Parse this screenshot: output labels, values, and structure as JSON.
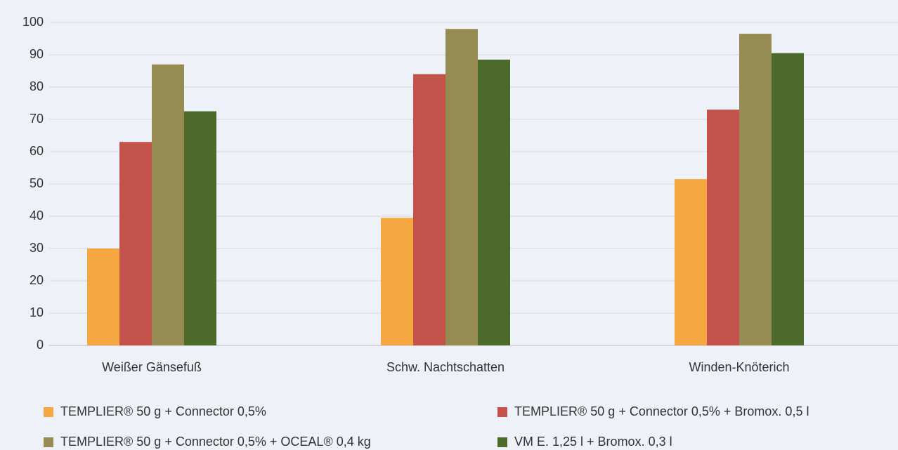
{
  "chart_data": {
    "type": "bar",
    "categories": [
      "Weißer Gänsefuß",
      "Schw. Nachtschatten",
      "Winden-Knöterich"
    ],
    "series": [
      {
        "name": "TEMPLIER® 50 g + Connector 0,5%",
        "color": "#f5a742",
        "values": [
          30,
          39.5,
          51.5
        ]
      },
      {
        "name": "TEMPLIER® 50 g + Connector 0,5% + Bromox. 0,5 l",
        "color": "#c3524a",
        "values": [
          63,
          84,
          73
        ]
      },
      {
        "name": "TEMPLIER® 50 g + Connector 0,5% + OCEAL® 0,4 kg",
        "color": "#968b52",
        "values": [
          87,
          98,
          96.5
        ]
      },
      {
        "name": "VM E. 1,25 l + Bromox. 0,3 l",
        "color": "#4c6b2a",
        "values": [
          72.5,
          88.5,
          90.5
        ]
      }
    ],
    "ylim": [
      0,
      100
    ],
    "yticks": [
      0,
      10,
      20,
      30,
      40,
      50,
      60,
      70,
      80,
      90,
      100
    ],
    "grid": true,
    "legend": "bottom"
  }
}
